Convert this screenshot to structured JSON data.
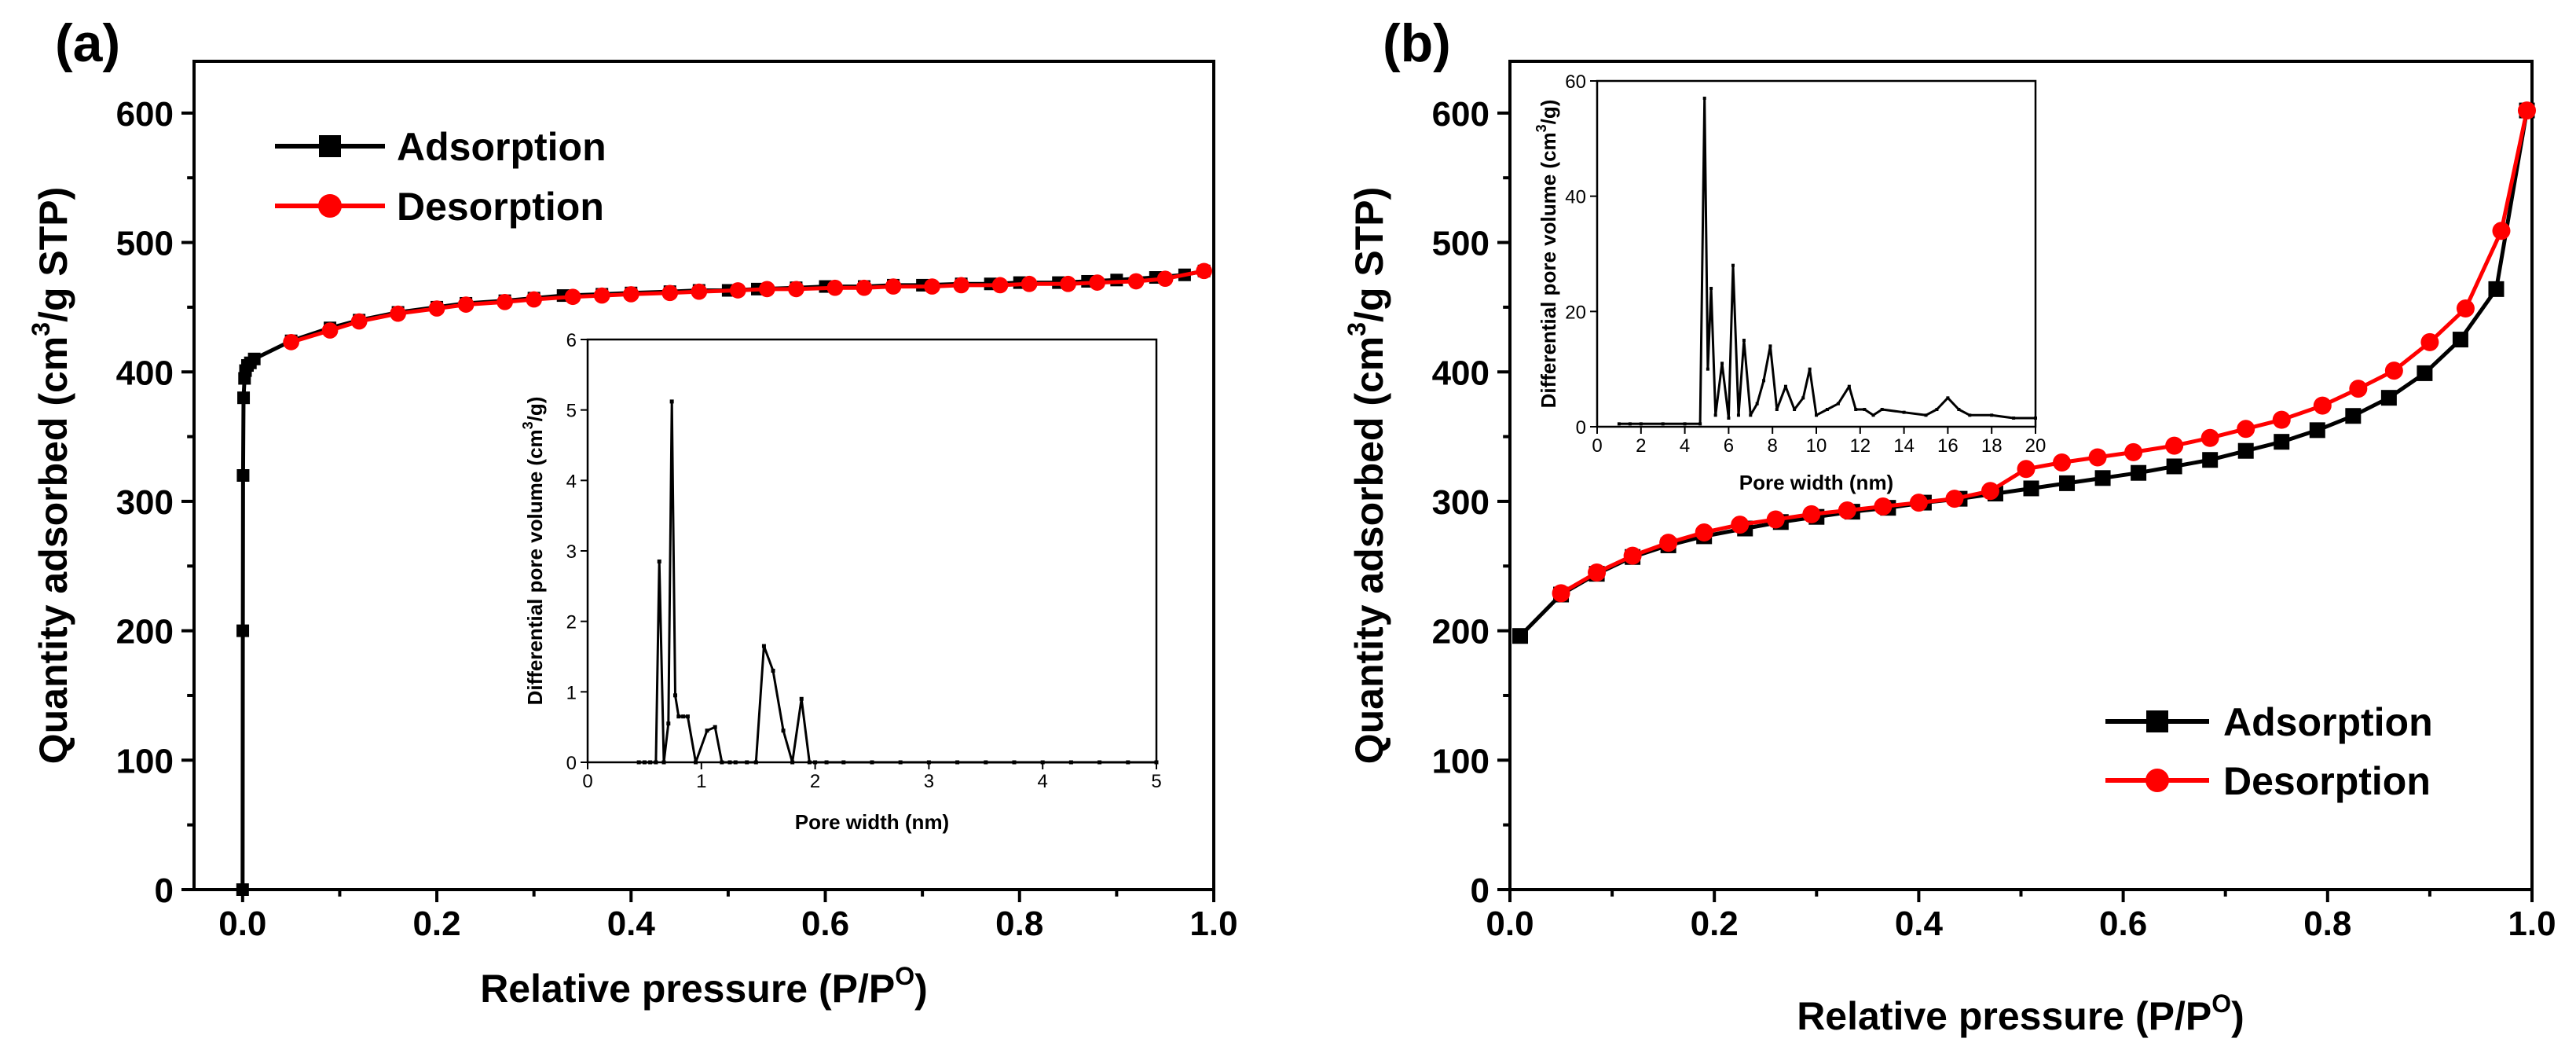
{
  "chart_data": [
    {
      "panel": "(a)",
      "type": "line",
      "xlabel": "Relative pressure (P/P",
      "xlabel_sup": "O",
      "xlabel_end": ")",
      "ylabel_pre": "Quantity adsorbed (cm",
      "ylabel_sup": "3",
      "ylabel_post": "/g STP)",
      "xlim": [
        -0.05,
        1.0
      ],
      "ylim": [
        0,
        640
      ],
      "xticks": [
        "0.0",
        "0.2",
        "0.4",
        "0.6",
        "0.8",
        "1.0"
      ],
      "yticks": [
        "0",
        "100",
        "200",
        "300",
        "400",
        "500",
        "600"
      ],
      "legend_position": "top-left",
      "series": [
        {
          "name": "Adsorption",
          "color": "#000000",
          "marker": "square",
          "x": [
            0.0,
            0.0002,
            0.0005,
            0.001,
            0.002,
            0.003,
            0.005,
            0.008,
            0.012,
            0.05,
            0.09,
            0.12,
            0.16,
            0.2,
            0.23,
            0.27,
            0.3,
            0.33,
            0.37,
            0.4,
            0.44,
            0.47,
            0.5,
            0.53,
            0.57,
            0.6,
            0.64,
            0.67,
            0.7,
            0.74,
            0.77,
            0.8,
            0.84,
            0.87,
            0.9,
            0.94,
            0.97,
            0.99
          ],
          "y": [
            0,
            200,
            320,
            380,
            395,
            401,
            405,
            407,
            410,
            424,
            434,
            440,
            446,
            450,
            453,
            455,
            457,
            459,
            460,
            461,
            462,
            463,
            463,
            464,
            465,
            466,
            466,
            467,
            467,
            468,
            468,
            469,
            469,
            470,
            471,
            473,
            475,
            478
          ]
        },
        {
          "name": "Desorption",
          "color": "#ff0000",
          "marker": "circle",
          "x": [
            0.99,
            0.95,
            0.92,
            0.88,
            0.85,
            0.81,
            0.78,
            0.74,
            0.71,
            0.67,
            0.64,
            0.61,
            0.57,
            0.54,
            0.51,
            0.47,
            0.44,
            0.4,
            0.37,
            0.34,
            0.3,
            0.27,
            0.23,
            0.2,
            0.16,
            0.12,
            0.09,
            0.05
          ],
          "y": [
            478,
            472,
            470,
            469,
            468,
            468,
            467,
            467,
            466,
            466,
            465,
            465,
            464,
            464,
            463,
            462,
            461,
            460,
            459,
            458,
            456,
            454,
            452,
            449,
            445,
            439,
            432,
            423
          ]
        }
      ],
      "inset": {
        "type": "line",
        "xlabel": "Pore width (nm)",
        "ylabel_pre": "Differential pore volume (cm",
        "ylabel_sup": "3",
        "ylabel_post": "/g)",
        "xlim": [
          0,
          5
        ],
        "ylim": [
          0,
          6
        ],
        "xticks": [
          "0",
          "1",
          "2",
          "3",
          "4",
          "5"
        ],
        "yticks": [
          "0",
          "1",
          "2",
          "3",
          "4",
          "5",
          "6"
        ],
        "x": [
          0.45,
          0.5,
          0.55,
          0.6,
          0.63,
          0.67,
          0.71,
          0.74,
          0.77,
          0.8,
          0.84,
          0.88,
          0.95,
          1.05,
          1.12,
          1.18,
          1.25,
          1.3,
          1.4,
          1.48,
          1.55,
          1.63,
          1.72,
          1.8,
          1.88,
          1.95,
          2.0,
          2.1,
          2.25,
          2.5,
          2.75,
          3.0,
          3.25,
          3.5,
          3.75,
          4.0,
          4.25,
          4.5,
          4.75,
          5.0
        ],
        "y": [
          0,
          0,
          0,
          0,
          2.85,
          0,
          0.55,
          5.12,
          0.95,
          0.65,
          0.65,
          0.65,
          0,
          0.45,
          0.5,
          0,
          0,
          0,
          0,
          0,
          1.65,
          1.3,
          0.45,
          0,
          0.9,
          0,
          0,
          0,
          0,
          0,
          0,
          0,
          0,
          0,
          0,
          0,
          0,
          0,
          0,
          0
        ]
      }
    },
    {
      "panel": "(b)",
      "type": "line",
      "xlabel": "Relative pressure (P/P",
      "xlabel_sup": "O",
      "xlabel_end": ")",
      "ylabel_pre": "Quantity adsorbed (cm",
      "ylabel_sup": "3",
      "ylabel_post": "/g STP)",
      "xlim": [
        0.0,
        1.0
      ],
      "ylim": [
        0,
        640
      ],
      "xticks": [
        "0.0",
        "0.2",
        "0.4",
        "0.6",
        "0.8",
        "1.0"
      ],
      "yticks": [
        "0",
        "100",
        "200",
        "300",
        "400",
        "500",
        "600"
      ],
      "legend_position": "bottom-right",
      "series": [
        {
          "name": "Adsorption",
          "color": "#000000",
          "marker": "square",
          "x": [
            0.01,
            0.05,
            0.085,
            0.12,
            0.155,
            0.19,
            0.23,
            0.265,
            0.3,
            0.335,
            0.37,
            0.405,
            0.44,
            0.475,
            0.51,
            0.545,
            0.58,
            0.615,
            0.65,
            0.685,
            0.72,
            0.755,
            0.79,
            0.825,
            0.86,
            0.895,
            0.93,
            0.965,
            0.995
          ],
          "y": [
            196,
            228,
            244,
            257,
            266,
            273,
            279,
            284,
            288,
            292,
            295,
            299,
            302,
            306,
            310,
            314,
            318,
            322,
            327,
            332,
            339,
            346,
            355,
            366,
            380,
            399,
            425,
            464,
            602
          ]
        },
        {
          "name": "Desorption",
          "color": "#ff0000",
          "marker": "circle",
          "x": [
            0.995,
            0.97,
            0.935,
            0.9,
            0.865,
            0.83,
            0.795,
            0.755,
            0.72,
            0.685,
            0.65,
            0.61,
            0.575,
            0.54,
            0.505,
            0.47,
            0.435,
            0.4,
            0.365,
            0.33,
            0.295,
            0.26,
            0.225,
            0.19,
            0.155,
            0.12,
            0.085,
            0.05
          ],
          "y": [
            602,
            509,
            449,
            423,
            401,
            387,
            374,
            363,
            356,
            349,
            343,
            338,
            334,
            330,
            325,
            308,
            302,
            299,
            296,
            293,
            290,
            286,
            282,
            276,
            268,
            258,
            245,
            229
          ]
        }
      ],
      "inset": {
        "type": "line",
        "xlabel": "Pore width (nm)",
        "ylabel_pre": "Differential pore volume (cm",
        "ylabel_sup": "3",
        "ylabel_post": "/g)",
        "xlim": [
          0,
          20
        ],
        "ylim": [
          0,
          60
        ],
        "xticks": [
          "0",
          "2",
          "4",
          "6",
          "8",
          "10",
          "12",
          "14",
          "16",
          "18",
          "20"
        ],
        "yticks": [
          "0",
          "20",
          "40",
          "60"
        ],
        "x": [
          1.0,
          1.5,
          2.0,
          3.0,
          4.0,
          4.7,
          4.9,
          5.05,
          5.2,
          5.4,
          5.7,
          6.0,
          6.2,
          6.45,
          6.7,
          7.0,
          7.3,
          7.6,
          7.9,
          8.2,
          8.6,
          9.0,
          9.4,
          9.7,
          10.0,
          10.5,
          11.0,
          11.5,
          11.8,
          12.2,
          12.6,
          13.0,
          14.0,
          15.0,
          15.5,
          16.0,
          16.5,
          17.0,
          18.0,
          19.0,
          20.0
        ],
        "y": [
          0.5,
          0.5,
          0.5,
          0.5,
          0.5,
          0.5,
          57,
          10,
          24,
          2,
          11,
          1.5,
          28,
          2,
          15,
          2,
          4,
          8,
          14,
          3,
          7,
          3,
          5,
          10,
          2,
          3,
          4,
          7,
          3,
          3,
          2,
          3,
          2.5,
          2,
          3,
          5,
          3,
          2,
          2,
          1.5,
          1.5
        ]
      }
    }
  ]
}
